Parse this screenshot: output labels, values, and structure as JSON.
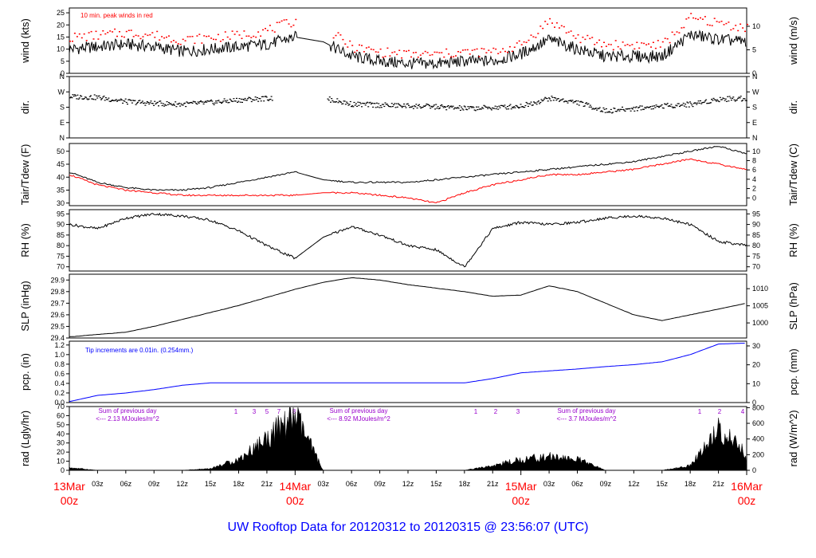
{
  "title": "UW Rooftop Data for 20120312  to  20120315 @ 23:56:07  (UTC)",
  "colors": {
    "peak": "#ff0000",
    "dew": "#ff0000",
    "pcp": "#0000ff",
    "sum": "#9900cc",
    "day": "#ff0000",
    "title": "#0000ff"
  },
  "chart_data": [
    {
      "type": "line",
      "panel": "wind",
      "ylabel_left": "wind (kts)",
      "ylabel_right": "wind (m/s)",
      "ylim": [
        0,
        27
      ],
      "yticks_left": [
        "0",
        "5",
        "10",
        "15",
        "20",
        "25"
      ],
      "yticks_right": [
        "0",
        "5",
        "10"
      ],
      "annotation": "10 min. peak winds in red",
      "x": [
        0,
        3,
        6,
        9,
        12,
        15,
        18,
        21,
        24,
        27,
        30,
        33,
        36,
        39,
        42,
        45,
        48,
        51,
        54,
        57,
        60,
        63,
        66,
        69,
        72
      ],
      "series": [
        {
          "values": [
            10,
            11,
            12,
            11,
            9,
            10,
            11,
            12,
            15,
            13,
            7,
            5,
            4,
            4,
            5,
            5,
            8,
            14,
            10,
            7,
            7,
            7,
            16,
            14,
            13
          ]
        },
        {
          "values": [
            15,
            16,
            17,
            16,
            14,
            15,
            16,
            18,
            22,
            19,
            11,
            9,
            8,
            8,
            9,
            9,
            12,
            22,
            15,
            12,
            12,
            12,
            23,
            21,
            19
          ]
        }
      ]
    },
    {
      "type": "scatter",
      "panel": "dir",
      "ylabel_left": "dir.",
      "ylabel_right": "dir.",
      "yticks": [
        "N",
        "E",
        "S",
        "W",
        "N"
      ],
      "ylim": [
        0,
        360
      ],
      "x": [
        0,
        3,
        6,
        9,
        12,
        15,
        18,
        21,
        24,
        27,
        30,
        33,
        36,
        39,
        42,
        45,
        48,
        51,
        54,
        57,
        60,
        63,
        66,
        69,
        72
      ],
      "values": [
        245,
        240,
        215,
        205,
        200,
        210,
        225,
        235,
        235,
        235,
        200,
        195,
        190,
        185,
        175,
        180,
        190,
        235,
        210,
        160,
        175,
        190,
        200,
        230,
        235
      ]
    },
    {
      "type": "line",
      "panel": "temp",
      "ylabel_left": "Tair/Tdew (F)",
      "ylabel_right": "Tair/Tdew (C)",
      "ylim": [
        29,
        53
      ],
      "yticks_left": [
        "30",
        "35",
        "40",
        "45",
        "50"
      ],
      "yticks_right": [
        "0",
        "2",
        "4",
        "6",
        "8",
        "10"
      ],
      "x": [
        0,
        3,
        6,
        9,
        12,
        15,
        18,
        21,
        24,
        27,
        30,
        33,
        36,
        39,
        42,
        45,
        48,
        51,
        54,
        57,
        60,
        63,
        66,
        69,
        72
      ],
      "series": [
        {
          "name": "Tair",
          "values": [
            42,
            38,
            36,
            35,
            35,
            36,
            38,
            40,
            42,
            39,
            38,
            38,
            38,
            39,
            40,
            41,
            42,
            43,
            44,
            45,
            46,
            48,
            50,
            52,
            49
          ]
        },
        {
          "name": "Tdew",
          "values": [
            41,
            37,
            35,
            34,
            33,
            33,
            33,
            33,
            33,
            34,
            34,
            33,
            32,
            30,
            34,
            37,
            39,
            41,
            41,
            42,
            43,
            45,
            47,
            45,
            43
          ]
        }
      ]
    },
    {
      "type": "line",
      "panel": "rh",
      "ylabel_left": "RH (%)",
      "ylabel_right": "RH (%)",
      "ylim": [
        68,
        97
      ],
      "yticks_left": [
        "70",
        "75",
        "80",
        "85",
        "90",
        "95"
      ],
      "yticks_right": [
        "70",
        "75",
        "80",
        "85",
        "90",
        "95"
      ],
      "x": [
        0,
        3,
        6,
        9,
        12,
        15,
        18,
        21,
        24,
        27,
        30,
        33,
        36,
        39,
        42,
        45,
        48,
        51,
        54,
        57,
        60,
        63,
        66,
        69,
        72
      ],
      "values": [
        90,
        88,
        93,
        95,
        94,
        92,
        87,
        80,
        74,
        84,
        89,
        85,
        80,
        78,
        70,
        88,
        91,
        90,
        91,
        93,
        94,
        93,
        90,
        82,
        80
      ]
    },
    {
      "type": "line",
      "panel": "slp",
      "ylabel_left": "SLP (inHg)",
      "ylabel_right": "SLP (hPa)",
      "ylim": [
        29.4,
        29.95
      ],
      "yticks_left": [
        "29.4",
        "29.5",
        "29.6",
        "29.7",
        "29.8",
        "29.9"
      ],
      "yticks_right": [
        "1000",
        "1005",
        "1010"
      ],
      "x": [
        0,
        3,
        6,
        9,
        12,
        15,
        18,
        21,
        24,
        27,
        30,
        33,
        36,
        39,
        42,
        45,
        48,
        51,
        54,
        57,
        60,
        63,
        66,
        69,
        72
      ],
      "values": [
        29.41,
        29.43,
        29.45,
        29.5,
        29.56,
        29.62,
        29.68,
        29.75,
        29.82,
        29.88,
        29.92,
        29.9,
        29.86,
        29.83,
        29.8,
        29.76,
        29.77,
        29.85,
        29.8,
        29.7,
        29.6,
        29.55,
        29.6,
        29.65,
        29.7
      ]
    },
    {
      "type": "line",
      "panel": "pcp",
      "ylabel_left": "pcp. (in)",
      "ylabel_right": "pcp. (mm)",
      "ylim": [
        0,
        1.28
      ],
      "yticks_left": [
        "0.0",
        "0.2",
        "0.4",
        "0.6",
        "0.8",
        "1.0",
        "1.2"
      ],
      "yticks_right": [
        "0",
        "10",
        "20",
        "30"
      ],
      "annotation": "Tip increments are 0.01in. (0.254mm.)",
      "x": [
        0,
        3,
        6,
        9,
        12,
        15,
        18,
        21,
        24,
        27,
        30,
        33,
        36,
        39,
        42,
        45,
        48,
        51,
        54,
        57,
        60,
        63,
        66,
        69,
        72
      ],
      "values": [
        0.02,
        0.15,
        0.2,
        0.27,
        0.36,
        0.41,
        0.41,
        0.41,
        0.41,
        0.41,
        0.41,
        0.41,
        0.41,
        0.41,
        0.41,
        0.5,
        0.62,
        0.66,
        0.7,
        0.75,
        0.79,
        0.85,
        1.0,
        1.22,
        1.24
      ]
    },
    {
      "type": "area",
      "panel": "rad",
      "ylabel_left": "rad (Lgly/hr)",
      "ylabel_right": "rad (W/m^2)",
      "ylim": [
        0,
        70
      ],
      "yticks_left": [
        "0",
        "10",
        "20",
        "30",
        "40",
        "50",
        "60",
        "70"
      ],
      "yticks_right": [
        "0",
        "200",
        "400",
        "600",
        "800"
      ],
      "daily_sums": [
        "Sum of previous day\n<--- 2.13 MJoules/m^2",
        "Sum of previous day\n<--- 8.92 MJoules/m^2",
        "Sum of previous day\n<--- 3.7 MJoules/m^2"
      ],
      "hour_marks": [
        [
          "1",
          "3",
          "5",
          "7",
          "8"
        ],
        [
          "1",
          "2",
          "3"
        ],
        [
          "1",
          "2",
          "4"
        ]
      ],
      "x": [
        0,
        3,
        6,
        9,
        12,
        15,
        18,
        21,
        24,
        27,
        30,
        33,
        36,
        39,
        42,
        45,
        48,
        51,
        54,
        57,
        60,
        63,
        66,
        69,
        72
      ],
      "values": [
        3,
        0,
        0,
        0,
        0,
        2,
        12,
        35,
        60,
        0,
        0,
        0,
        0,
        0,
        0,
        5,
        12,
        15,
        12,
        0,
        0,
        0,
        5,
        45,
        18
      ]
    }
  ],
  "x_axis": {
    "hour_ticks": [
      "03z",
      "06z",
      "09z",
      "12z",
      "15z",
      "18z",
      "21z"
    ],
    "days": [
      {
        "name": "13Mar",
        "time": "00z"
      },
      {
        "name": "14Mar",
        "time": "00z"
      },
      {
        "name": "15Mar",
        "time": "00z"
      },
      {
        "name": "16Mar",
        "time": "00z"
      }
    ]
  }
}
